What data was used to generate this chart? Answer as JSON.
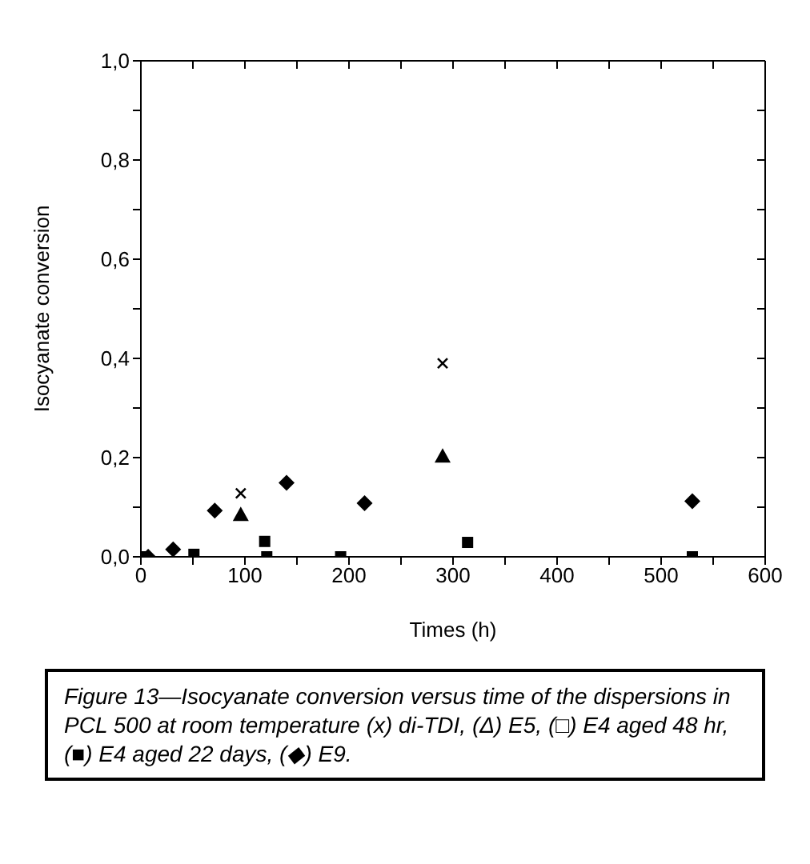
{
  "chart_data": {
    "type": "scatter",
    "xlabel": "Times (h)",
    "ylabel": "Isocyanate conversion",
    "xlim": [
      0,
      600
    ],
    "ylim": [
      0,
      1
    ],
    "xticks": [
      0,
      {
        "value": 50,
        "label": null
      },
      100,
      {
        "value": 150,
        "label": null
      },
      200,
      {
        "value": 250,
        "label": null
      },
      300,
      {
        "value": 350,
        "label": null
      },
      400,
      {
        "value": 450,
        "label": null
      },
      500,
      {
        "value": 550,
        "label": null
      },
      600
    ],
    "yticks": [
      {
        "value": 0,
        "label": "0,0"
      },
      {
        "value": 0.1,
        "label": null
      },
      {
        "value": 0.2,
        "label": "0,2"
      },
      {
        "value": 0.3,
        "label": null
      },
      {
        "value": 0.4,
        "label": "0,4"
      },
      {
        "value": 0.5,
        "label": null
      },
      {
        "value": 0.6,
        "label": "0,6"
      },
      {
        "value": 0.7,
        "label": null
      },
      {
        "value": 0.8,
        "label": "0,8"
      },
      {
        "value": 0.9,
        "label": null
      },
      {
        "value": 1,
        "label": "1,0"
      }
    ],
    "series": [
      {
        "color": "#000000",
        "marker": "cross",
        "x": [
          96,
          290
        ],
        "values": [
          0.128,
          0.39
        ]
      },
      {
        "color": "#000000",
        "marker": "triangle",
        "x": [
          96,
          290
        ],
        "values": [
          0.085,
          0.203
        ]
      },
      {
        "color": "#000000",
        "marker": "square",
        "x": [
          0,
          51,
          119,
          192,
          530
        ],
        "values": [
          0,
          0.005,
          0.031,
          0,
          0
        ]
      },
      {
        "color": "#000000",
        "marker": "square",
        "x": [
          121,
          314
        ],
        "values": [
          0,
          0.029
        ]
      },
      {
        "color": "#000000",
        "marker": "diamond",
        "x": [
          7,
          31,
          71,
          140,
          215,
          530
        ],
        "values": [
          0,
          0.015,
          0.093,
          0.149,
          0.108,
          0.112
        ]
      }
    ],
    "annotations": [
      "Figure 13—Isocyanate conversion versus time of the dispersions in PCL 500 at room temperature (x) di-TDI, (Δ) E5, (□) E4 aged 48 hr, (■) E4 aged 22 days, (◆) E9."
    ]
  }
}
